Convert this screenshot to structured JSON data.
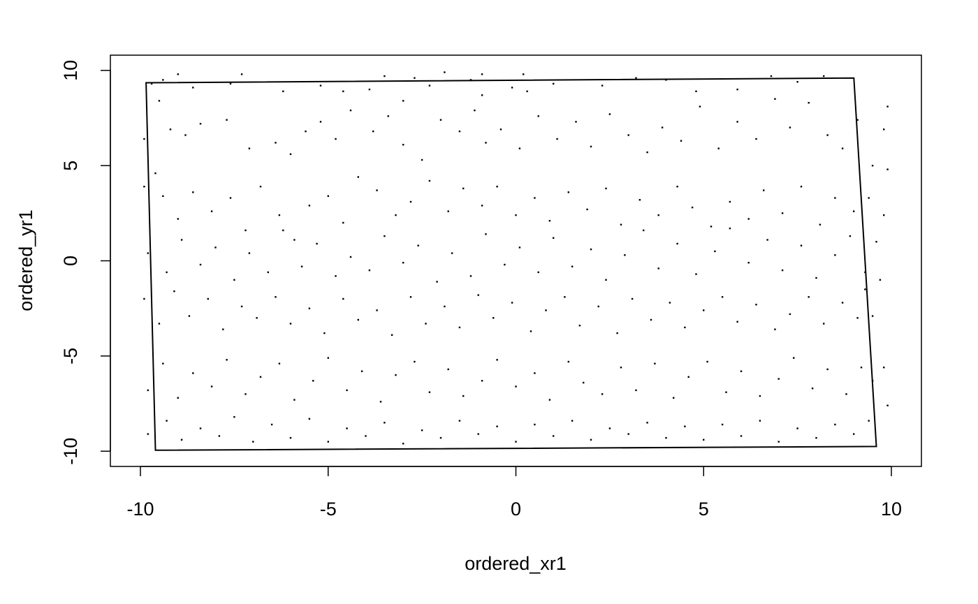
{
  "chart_data": {
    "type": "scatter",
    "title": "",
    "xlabel": "ordered_xr1",
    "ylabel": "ordered_yr1",
    "xlim": [
      -10.8,
      10.8
    ],
    "ylim": [
      -10.8,
      10.8
    ],
    "x_ticks": [
      -10,
      -5,
      0,
      5,
      10
    ],
    "y_ticks": [
      -10,
      -5,
      0,
      5,
      10
    ],
    "x_tick_labels": [
      "-10",
      "-5",
      "0",
      "5",
      "10"
    ],
    "y_tick_labels": [
      "-10",
      "-5",
      "0",
      "5",
      "10"
    ],
    "grid": false,
    "point_color": "#000000",
    "hull": [
      [
        -9.85,
        9.35
      ],
      [
        9.0,
        9.6
      ],
      [
        9.6,
        -9.75
      ],
      [
        -9.6,
        -9.95
      ]
    ],
    "points": [
      [
        -9.7,
        9.3
      ],
      [
        -9.5,
        8.4
      ],
      [
        -9.4,
        9.5
      ],
      [
        -9.0,
        9.8
      ],
      [
        -8.6,
        9.1
      ],
      [
        -7.6,
        9.3
      ],
      [
        -7.3,
        9.8
      ],
      [
        -6.2,
        8.9
      ],
      [
        -5.2,
        9.2
      ],
      [
        -4.6,
        8.9
      ],
      [
        -3.9,
        9.0
      ],
      [
        -3.5,
        9.7
      ],
      [
        -3.0,
        8.4
      ],
      [
        -2.7,
        9.6
      ],
      [
        -2.3,
        9.2
      ],
      [
        -1.9,
        9.9
      ],
      [
        -1.2,
        9.5
      ],
      [
        -0.9,
        8.7
      ],
      [
        -0.9,
        9.8
      ],
      [
        -0.1,
        9.1
      ],
      [
        0.2,
        9.8
      ],
      [
        0.3,
        8.9
      ],
      [
        1.0,
        9.3
      ],
      [
        2.3,
        9.2
      ],
      [
        3.2,
        9.6
      ],
      [
        4.0,
        9.5
      ],
      [
        4.8,
        8.9
      ],
      [
        5.9,
        9.0
      ],
      [
        6.8,
        9.7
      ],
      [
        7.5,
        9.4
      ],
      [
        8.2,
        9.7
      ],
      [
        -9.9,
        6.4
      ],
      [
        -9.6,
        4.6
      ],
      [
        -9.2,
        6.9
      ],
      [
        -8.8,
        6.6
      ],
      [
        -8.4,
        7.2
      ],
      [
        -7.7,
        7.4
      ],
      [
        -7.1,
        5.9
      ],
      [
        -6.4,
        6.2
      ],
      [
        -6.0,
        5.6
      ],
      [
        -5.6,
        6.8
      ],
      [
        -5.2,
        7.3
      ],
      [
        -4.8,
        6.4
      ],
      [
        -4.4,
        7.9
      ],
      [
        -3.8,
        6.8
      ],
      [
        -3.4,
        7.6
      ],
      [
        -3.0,
        6.1
      ],
      [
        -2.5,
        5.3
      ],
      [
        -2.0,
        7.4
      ],
      [
        -1.5,
        6.8
      ],
      [
        -1.1,
        7.9
      ],
      [
        -0.8,
        6.2
      ],
      [
        -0.4,
        6.9
      ],
      [
        0.1,
        5.9
      ],
      [
        0.6,
        7.6
      ],
      [
        1.1,
        6.4
      ],
      [
        1.6,
        7.3
      ],
      [
        2.0,
        6.0
      ],
      [
        2.5,
        7.7
      ],
      [
        3.0,
        6.6
      ],
      [
        3.5,
        5.7
      ],
      [
        3.9,
        7.0
      ],
      [
        4.4,
        6.3
      ],
      [
        4.9,
        8.1
      ],
      [
        5.4,
        5.9
      ],
      [
        5.9,
        7.3
      ],
      [
        6.4,
        6.4
      ],
      [
        6.9,
        8.5
      ],
      [
        7.3,
        7.0
      ],
      [
        7.8,
        8.3
      ],
      [
        8.3,
        6.6
      ],
      [
        8.7,
        5.9
      ],
      [
        9.1,
        7.4
      ],
      [
        9.5,
        5.0
      ],
      [
        9.8,
        6.9
      ],
      [
        9.9,
        8.1
      ],
      [
        -9.9,
        3.9
      ],
      [
        -9.4,
        3.4
      ],
      [
        -9.0,
        2.2
      ],
      [
        -8.6,
        3.6
      ],
      [
        -8.1,
        2.6
      ],
      [
        -7.6,
        3.3
      ],
      [
        -7.2,
        1.6
      ],
      [
        -6.8,
        3.9
      ],
      [
        -6.3,
        2.4
      ],
      [
        -5.9,
        1.1
      ],
      [
        -5.5,
        2.9
      ],
      [
        -5.0,
        3.4
      ],
      [
        -4.6,
        2.0
      ],
      [
        -4.2,
        4.4
      ],
      [
        -3.7,
        3.7
      ],
      [
        -3.2,
        2.4
      ],
      [
        -2.8,
        3.1
      ],
      [
        -2.3,
        4.2
      ],
      [
        -1.8,
        2.6
      ],
      [
        -1.4,
        3.8
      ],
      [
        -0.9,
        2.9
      ],
      [
        -0.5,
        3.9
      ],
      [
        0.0,
        2.4
      ],
      [
        0.5,
        3.3
      ],
      [
        0.9,
        2.1
      ],
      [
        1.4,
        3.6
      ],
      [
        1.9,
        2.7
      ],
      [
        2.4,
        3.8
      ],
      [
        2.8,
        1.9
      ],
      [
        3.3,
        3.2
      ],
      [
        3.8,
        2.4
      ],
      [
        4.3,
        3.9
      ],
      [
        4.7,
        2.8
      ],
      [
        5.2,
        1.8
      ],
      [
        5.7,
        3.1
      ],
      [
        6.2,
        2.2
      ],
      [
        6.6,
        3.7
      ],
      [
        7.1,
        2.5
      ],
      [
        7.6,
        3.9
      ],
      [
        8.1,
        1.9
      ],
      [
        8.5,
        3.3
      ],
      [
        9.0,
        2.6
      ],
      [
        9.4,
        3.3
      ],
      [
        9.8,
        2.4
      ],
      [
        9.9,
        4.8
      ],
      [
        -9.8,
        0.4
      ],
      [
        -9.3,
        -0.6
      ],
      [
        -8.9,
        1.1
      ],
      [
        -8.4,
        -0.2
      ],
      [
        -8.0,
        0.7
      ],
      [
        -7.5,
        -1.0
      ],
      [
        -7.1,
        0.4
      ],
      [
        -6.6,
        -0.6
      ],
      [
        -6.2,
        1.6
      ],
      [
        -5.7,
        -0.3
      ],
      [
        -5.3,
        0.9
      ],
      [
        -4.8,
        -0.8
      ],
      [
        -4.4,
        0.2
      ],
      [
        -3.9,
        -0.5
      ],
      [
        -3.5,
        1.3
      ],
      [
        -3.0,
        -0.1
      ],
      [
        -2.6,
        0.8
      ],
      [
        -2.1,
        -1.1
      ],
      [
        -1.7,
        0.4
      ],
      [
        -1.2,
        -0.8
      ],
      [
        -0.8,
        1.4
      ],
      [
        -0.3,
        -0.2
      ],
      [
        0.1,
        0.7
      ],
      [
        0.6,
        -0.6
      ],
      [
        1.0,
        1.2
      ],
      [
        1.5,
        -0.3
      ],
      [
        2.0,
        0.6
      ],
      [
        2.4,
        -1.0
      ],
      [
        2.9,
        0.3
      ],
      [
        3.4,
        1.6
      ],
      [
        3.8,
        -0.4
      ],
      [
        4.3,
        0.9
      ],
      [
        4.8,
        -0.7
      ],
      [
        5.3,
        0.5
      ],
      [
        5.7,
        1.7
      ],
      [
        6.2,
        -0.1
      ],
      [
        6.7,
        1.1
      ],
      [
        7.1,
        -0.5
      ],
      [
        7.6,
        0.8
      ],
      [
        8.0,
        -0.9
      ],
      [
        8.5,
        0.3
      ],
      [
        8.9,
        1.3
      ],
      [
        9.3,
        -0.6
      ],
      [
        9.6,
        1.0
      ],
      [
        9.7,
        -1.0
      ],
      [
        -9.9,
        -2.0
      ],
      [
        -9.5,
        -3.3
      ],
      [
        -9.1,
        -1.6
      ],
      [
        -8.7,
        -2.9
      ],
      [
        -8.2,
        -2.0
      ],
      [
        -7.8,
        -3.6
      ],
      [
        -7.3,
        -2.4
      ],
      [
        -6.9,
        -3.0
      ],
      [
        -6.4,
        -1.9
      ],
      [
        -6.0,
        -3.3
      ],
      [
        -5.5,
        -2.5
      ],
      [
        -5.1,
        -3.8
      ],
      [
        -4.6,
        -2.0
      ],
      [
        -4.2,
        -3.1
      ],
      [
        -3.7,
        -2.6
      ],
      [
        -3.3,
        -3.9
      ],
      [
        -2.8,
        -1.9
      ],
      [
        -2.4,
        -3.3
      ],
      [
        -1.9,
        -2.4
      ],
      [
        -1.5,
        -3.5
      ],
      [
        -1.0,
        -1.8
      ],
      [
        -0.6,
        -3.0
      ],
      [
        -0.1,
        -2.2
      ],
      [
        0.4,
        -3.7
      ],
      [
        0.8,
        -2.6
      ],
      [
        1.3,
        -1.9
      ],
      [
        1.7,
        -3.4
      ],
      [
        2.2,
        -2.4
      ],
      [
        2.7,
        -3.8
      ],
      [
        3.1,
        -2.0
      ],
      [
        3.6,
        -3.1
      ],
      [
        4.1,
        -2.2
      ],
      [
        4.5,
        -3.5
      ],
      [
        5.0,
        -2.6
      ],
      [
        5.5,
        -1.9
      ],
      [
        5.9,
        -3.2
      ],
      [
        6.4,
        -2.3
      ],
      [
        6.9,
        -3.6
      ],
      [
        7.3,
        -2.8
      ],
      [
        7.8,
        -1.9
      ],
      [
        8.2,
        -3.3
      ],
      [
        8.7,
        -2.2
      ],
      [
        9.1,
        -3.0
      ],
      [
        9.3,
        -1.5
      ],
      [
        9.5,
        -2.9
      ],
      [
        -9.8,
        -6.8
      ],
      [
        -9.4,
        -5.4
      ],
      [
        -9.0,
        -7.2
      ],
      [
        -8.6,
        -5.9
      ],
      [
        -8.1,
        -6.6
      ],
      [
        -7.7,
        -5.2
      ],
      [
        -7.2,
        -7.0
      ],
      [
        -6.8,
        -6.1
      ],
      [
        -6.3,
        -5.4
      ],
      [
        -5.9,
        -7.3
      ],
      [
        -5.4,
        -6.3
      ],
      [
        -5.0,
        -5.1
      ],
      [
        -4.5,
        -6.8
      ],
      [
        -4.1,
        -5.8
      ],
      [
        -3.6,
        -7.4
      ],
      [
        -3.2,
        -6.0
      ],
      [
        -2.7,
        -5.3
      ],
      [
        -2.3,
        -6.9
      ],
      [
        -1.8,
        -5.7
      ],
      [
        -1.4,
        -7.1
      ],
      [
        -0.9,
        -6.3
      ],
      [
        -0.5,
        -5.2
      ],
      [
        0.0,
        -6.6
      ],
      [
        0.5,
        -5.9
      ],
      [
        0.9,
        -7.3
      ],
      [
        1.4,
        -5.3
      ],
      [
        1.8,
        -6.4
      ],
      [
        2.3,
        -7.0
      ],
      [
        2.8,
        -5.6
      ],
      [
        3.2,
        -6.8
      ],
      [
        3.7,
        -5.4
      ],
      [
        4.2,
        -7.2
      ],
      [
        4.6,
        -6.1
      ],
      [
        5.1,
        -5.3
      ],
      [
        5.6,
        -6.9
      ],
      [
        6.0,
        -5.8
      ],
      [
        6.5,
        -7.1
      ],
      [
        7.0,
        -6.2
      ],
      [
        7.4,
        -5.1
      ],
      [
        7.9,
        -6.7
      ],
      [
        8.3,
        -5.7
      ],
      [
        8.8,
        -7.0
      ],
      [
        9.2,
        -5.6
      ],
      [
        9.5,
        -6.3
      ],
      [
        9.8,
        -5.6
      ],
      [
        -9.8,
        -9.1
      ],
      [
        -9.3,
        -8.4
      ],
      [
        -8.9,
        -9.4
      ],
      [
        -8.4,
        -8.8
      ],
      [
        -7.9,
        -9.2
      ],
      [
        -7.5,
        -8.2
      ],
      [
        -7.0,
        -9.5
      ],
      [
        -6.5,
        -8.6
      ],
      [
        -6.0,
        -9.3
      ],
      [
        -5.5,
        -8.3
      ],
      [
        -5.0,
        -9.5
      ],
      [
        -4.5,
        -8.8
      ],
      [
        -4.0,
        -9.2
      ],
      [
        -3.5,
        -8.5
      ],
      [
        -3.0,
        -9.6
      ],
      [
        -2.5,
        -8.9
      ],
      [
        -2.0,
        -9.3
      ],
      [
        -1.5,
        -8.4
      ],
      [
        -1.0,
        -9.1
      ],
      [
        -0.5,
        -8.7
      ],
      [
        0.0,
        -9.5
      ],
      [
        0.5,
        -8.6
      ],
      [
        1.0,
        -9.2
      ],
      [
        1.5,
        -8.4
      ],
      [
        2.0,
        -9.4
      ],
      [
        2.5,
        -8.8
      ],
      [
        3.0,
        -9.1
      ],
      [
        3.5,
        -8.5
      ],
      [
        4.0,
        -9.3
      ],
      [
        4.5,
        -8.7
      ],
      [
        5.0,
        -9.4
      ],
      [
        5.5,
        -8.6
      ],
      [
        6.0,
        -9.2
      ],
      [
        6.5,
        -8.4
      ],
      [
        7.0,
        -9.5
      ],
      [
        7.5,
        -8.8
      ],
      [
        8.0,
        -9.3
      ],
      [
        8.5,
        -8.6
      ],
      [
        9.0,
        -9.1
      ],
      [
        9.4,
        -8.4
      ],
      [
        9.9,
        -7.6
      ]
    ]
  }
}
